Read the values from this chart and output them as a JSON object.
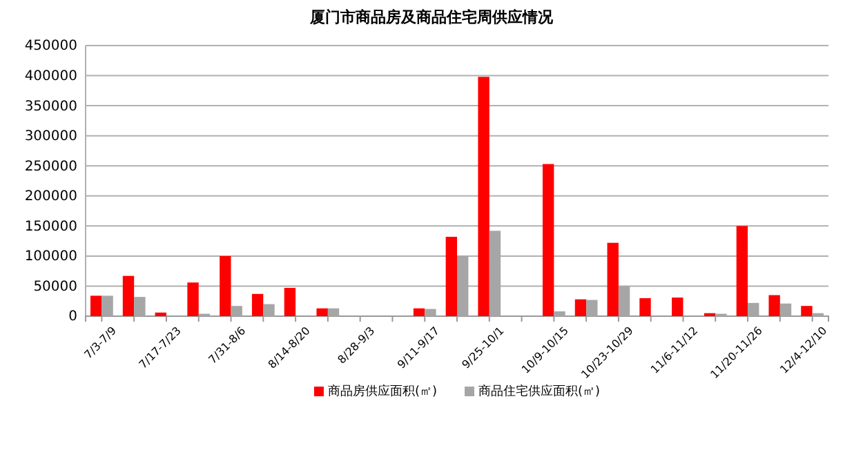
{
  "chart_data": {
    "type": "bar",
    "title": "厦门市商品房及商品住宅周供应情况",
    "categories": [
      "7/3-7/9",
      null,
      "7/17-7/23",
      null,
      "7/31-8/6",
      null,
      "8/14-8/20",
      null,
      "8/28-9/3",
      null,
      "9/11-9/17",
      null,
      "9/25-10/1",
      null,
      "10/9-10/15",
      null,
      "10/23-10/29",
      null,
      "11/6-11/12",
      null,
      "11/20-11/26",
      null,
      "12/4-12/10"
    ],
    "series": [
      {
        "name": "商品房供应面积(㎡)",
        "color": "#ff0000",
        "values": [
          34000,
          67000,
          6000,
          56000,
          100000,
          37000,
          47000,
          13000,
          0,
          0,
          13000,
          132000,
          398000,
          0,
          253000,
          28000,
          122000,
          30000,
          31000,
          5000,
          150000,
          35000,
          17000
        ]
      },
      {
        "name": "商品住宅供应面积(㎡)",
        "color": "#a6a6a6",
        "values": [
          34000,
          32000,
          0,
          4000,
          17000,
          20000,
          0,
          13000,
          0,
          0,
          12000,
          100000,
          142000,
          0,
          8000,
          27000,
          50000,
          0,
          0,
          4000,
          22000,
          21000,
          5000
        ]
      }
    ],
    "ylim": [
      0,
      450000
    ],
    "yticks": [
      0,
      50000,
      100000,
      150000,
      200000,
      250000,
      300000,
      350000,
      400000,
      450000
    ],
    "grid": "y",
    "legend": "bottom"
  }
}
